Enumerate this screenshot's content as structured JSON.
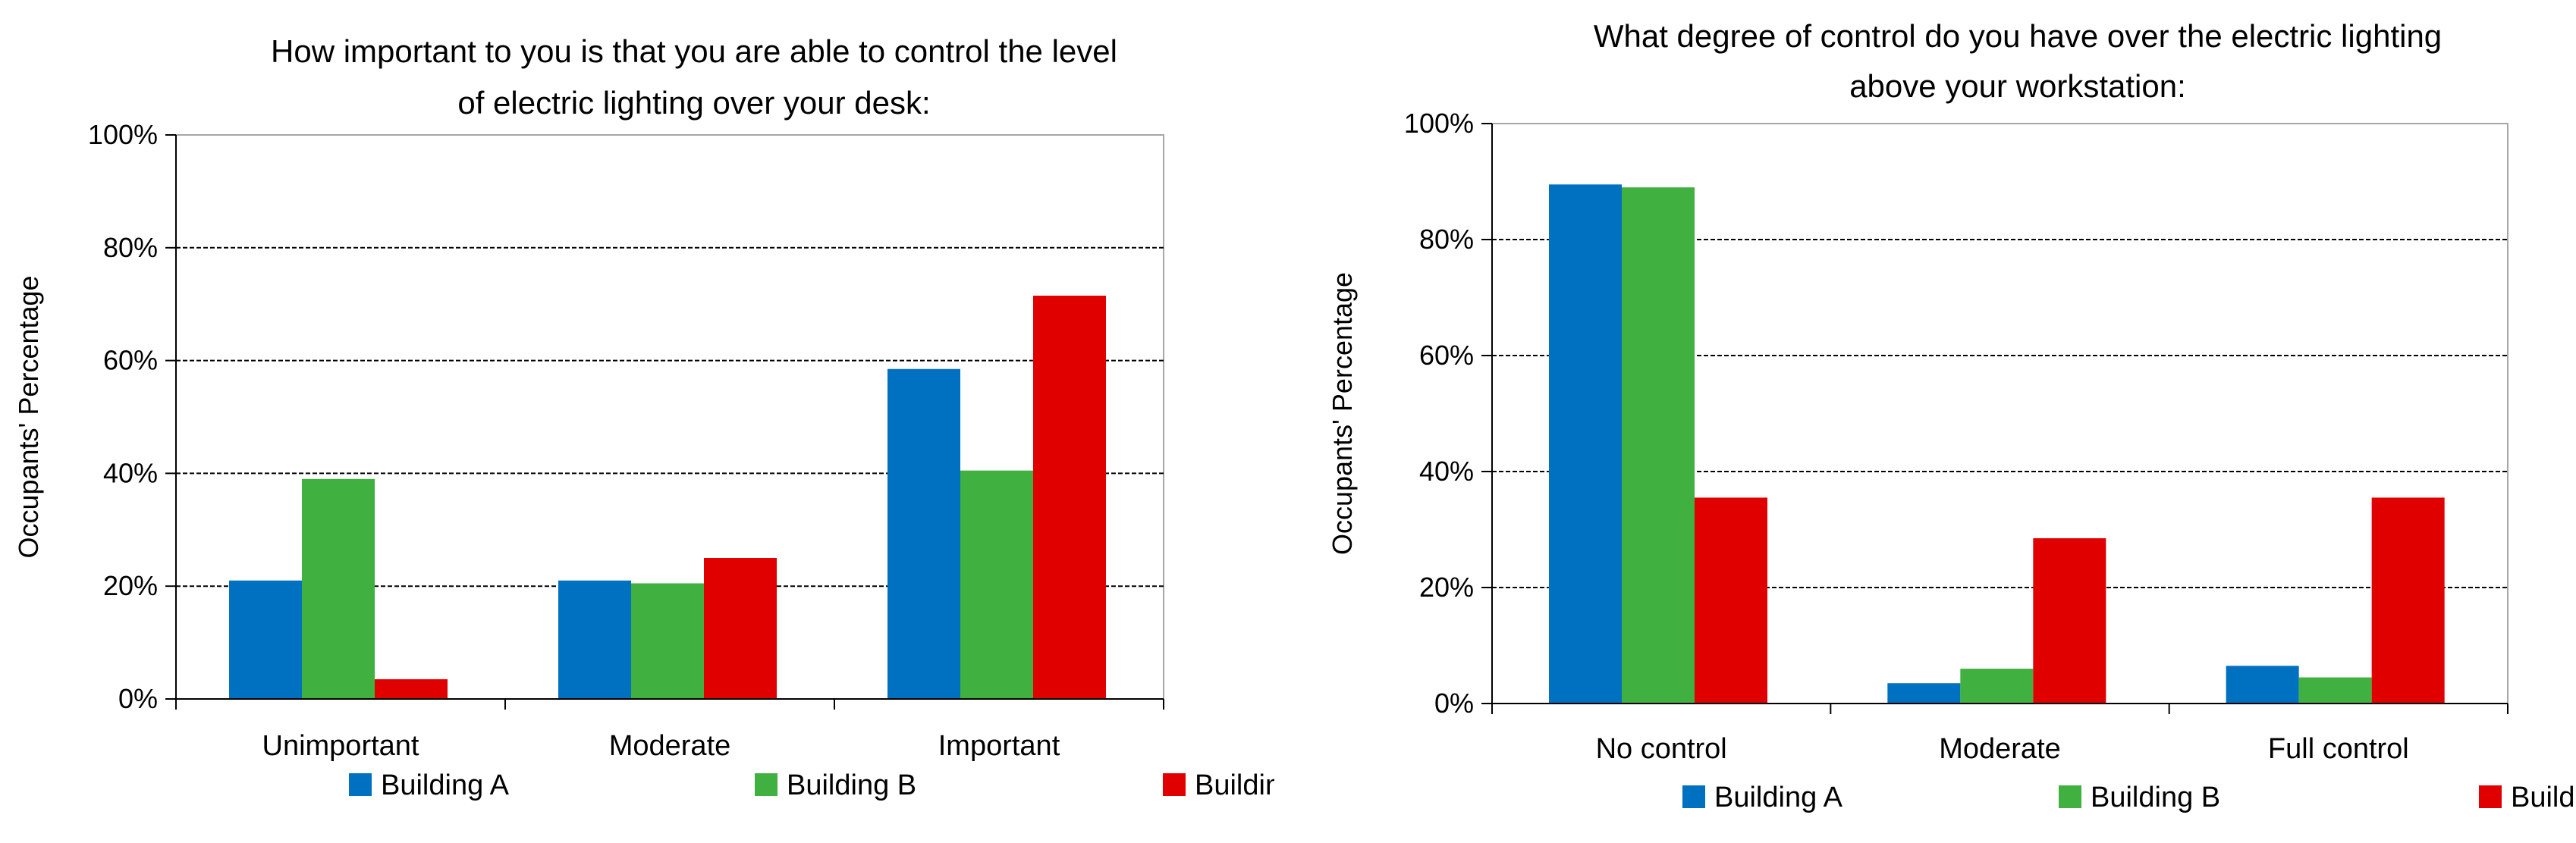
{
  "colors": {
    "Building A": "#0070C0",
    "Building B": "#40B040",
    "Building C": "#E00000"
  },
  "chart_data": [
    {
      "type": "bar",
      "title_lines": [
        "How important to you is that you are able to control the level",
        "of electric lighting over your desk:"
      ],
      "ylabel": "Occupants' Percentage",
      "xlabel": "",
      "ylim": [
        0,
        100
      ],
      "yticks": [
        "0%",
        "20%",
        "40%",
        "60%",
        "80%",
        "100%"
      ],
      "grid": true,
      "legend_position": "bottom",
      "categories": [
        "Unimportant",
        "Moderate",
        "Important"
      ],
      "series": [
        {
          "name": "Building A",
          "values": [
            21,
            21,
            58.5
          ]
        },
        {
          "name": "Building B",
          "values": [
            39,
            20.5,
            40.5
          ]
        },
        {
          "name": "Building C",
          "values": [
            3.5,
            25,
            71.5
          ]
        }
      ]
    },
    {
      "type": "bar",
      "title_lines": [
        "What degree of control do you have over the electric lighting",
        "above your workstation:"
      ],
      "ylabel": "Occupants' Percentage",
      "xlabel": "",
      "ylim": [
        0,
        100
      ],
      "yticks": [
        "0%",
        "20%",
        "40%",
        "60%",
        "80%",
        "100%"
      ],
      "grid": true,
      "legend_position": "bottom",
      "categories": [
        "No control",
        "Moderate",
        "Full control"
      ],
      "series": [
        {
          "name": "Building A",
          "values": [
            89.5,
            3.5,
            6.5
          ]
        },
        {
          "name": "Building B",
          "values": [
            89,
            6,
            4.5
          ]
        },
        {
          "name": "Building C",
          "values": [
            35.5,
            28.5,
            35.5
          ]
        }
      ]
    }
  ]
}
